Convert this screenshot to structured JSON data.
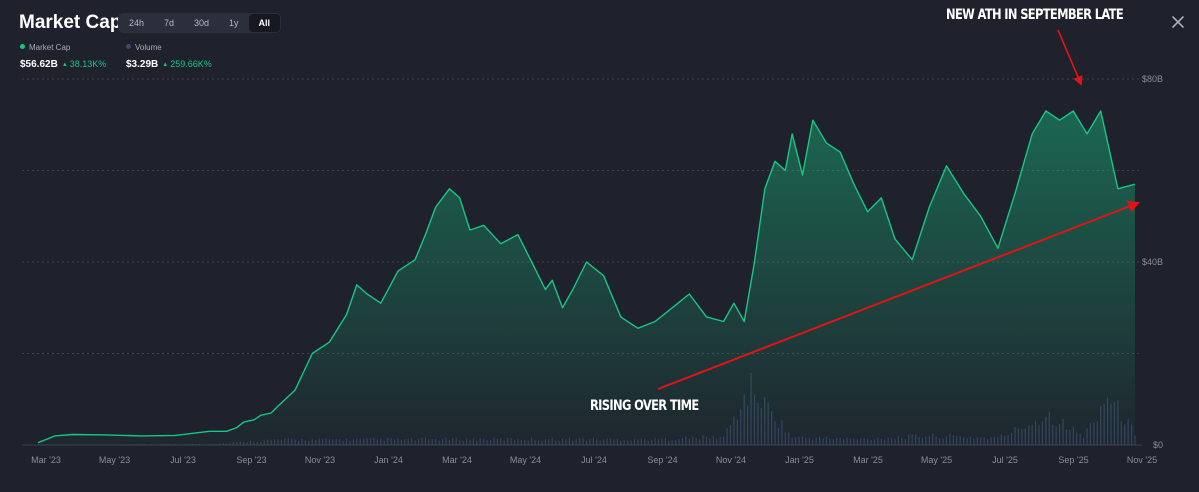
{
  "header": {
    "title": "Market Cap",
    "range_tabs": [
      "24h",
      "7d",
      "30d",
      "1y",
      "All"
    ],
    "active_range": "All"
  },
  "legend": {
    "market_cap": {
      "label": "Market Cap",
      "value": "$56.62B",
      "change": "38.13K%",
      "color": "#16c784"
    },
    "volume": {
      "label": "Volume",
      "value": "$3.29B",
      "change": "259.66K%",
      "color": "#3d4a6e"
    }
  },
  "annotations": {
    "ath": "NEW ATH IN SEPTEMBER LATE",
    "trend": "RISING OVER TIME",
    "arrow_color": "#e01414"
  },
  "icons": {
    "close": "close-icon"
  },
  "chart_data": {
    "type": "area",
    "title": "",
    "xlabel": "",
    "ylabel": "",
    "x_tick_labels": [
      "Mar '23",
      "May '23",
      "Jul '23",
      "Sep '23",
      "Nov '23",
      "Jan '24",
      "Mar '24",
      "May '24",
      "Jul '24",
      "Sep '24",
      "Nov '24",
      "Jan '25",
      "Mar '25",
      "May '25",
      "Jul '25",
      "Sep '25",
      "Nov '25"
    ],
    "y_tick_labels": [
      "$0",
      "$40B",
      "$80B"
    ],
    "ylim": [
      0,
      80
    ],
    "y_unit": "billion USD",
    "grid": true,
    "series": [
      {
        "name": "Market Cap",
        "color": "#16c784",
        "x": [
          0,
          0.5,
          1,
          2,
          3,
          4,
          5,
          5.5,
          5.8,
          6.0,
          6.3,
          6.5,
          6.8,
          7.0,
          7.5,
          8.0,
          8.5,
          9.0,
          9.3,
          9.6,
          10.0,
          10.5,
          11.0,
          11.3,
          11.6,
          12.0,
          12.3,
          12.6,
          13.0,
          13.5,
          14.0,
          14.4,
          14.8,
          15.0,
          15.3,
          15.6,
          16.0,
          16.5,
          17.0,
          17.5,
          18.0,
          18.5,
          19.0,
          19.5,
          20.0,
          20.3,
          20.6,
          20.9,
          21.2,
          21.5,
          21.8,
          22.0,
          22.3,
          22.6,
          23.0,
          23.4,
          23.8,
          24.2,
          24.6,
          25.0,
          25.5,
          26.0,
          26.5,
          27.0,
          27.5,
          28.0,
          28.5,
          29.0,
          29.4,
          29.8,
          30.2,
          30.6,
          31.0,
          31.5,
          32.0
        ],
        "y": [
          0.5,
          2.0,
          2.3,
          2.2,
          2.0,
          2.1,
          3.0,
          3.0,
          3.8,
          5.0,
          5.5,
          6.5,
          7.0,
          8.5,
          12.0,
          20.0,
          22.5,
          28.5,
          35.0,
          33.0,
          31.0,
          38.0,
          40.5,
          46.0,
          52.0,
          56.0,
          54.0,
          47.0,
          48.0,
          44.0,
          46.0,
          40.0,
          34.0,
          36.0,
          30.0,
          34.0,
          40.0,
          37.0,
          28.0,
          25.5,
          27.0,
          30.0,
          33.0,
          28.0,
          27.0,
          31.0,
          27.0,
          40.0,
          56.0,
          62.0,
          60.0,
          68.0,
          59.0,
          71.0,
          66.0,
          64.0,
          57.0,
          51.0,
          54.0,
          45.0,
          40.5,
          52.0,
          61.0,
          55.0,
          50.0,
          43.0,
          55.0,
          68.0,
          73.0,
          71.0,
          73.0,
          68.0,
          73.0,
          56.0,
          57.0
        ]
      },
      {
        "name": "Volume",
        "color": "#3d4a6e",
        "x": [
          0,
          5,
          7,
          10,
          14,
          18,
          20,
          20.8,
          22,
          24,
          26,
          28,
          29.5,
          30.5,
          31.2,
          32.0
        ],
        "y": [
          0.1,
          0.3,
          1.5,
          1.6,
          1.7,
          1.6,
          2.3,
          16.0,
          2.2,
          1.7,
          2.6,
          2.0,
          8.5,
          2.4,
          14.0,
          3.3
        ]
      }
    ]
  }
}
